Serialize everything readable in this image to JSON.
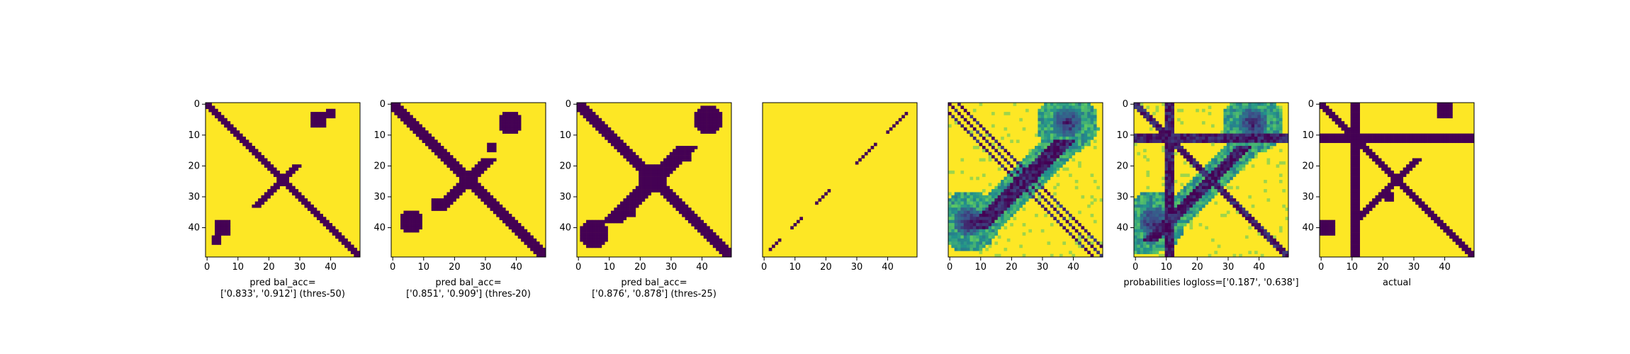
{
  "figure": {
    "panel_count": 7
  },
  "colors": {
    "low": "#440154",
    "high": "#fde725",
    "colormap": "viridis"
  },
  "chart_data": [
    {
      "type": "heatmap",
      "title": "",
      "xlabel": "pred bal_acc=\n['0.833', '0.912'] (thres-50)",
      "ylabel": "",
      "xlim": [
        0,
        49
      ],
      "ylim": [
        49,
        0
      ],
      "xticks": [
        0,
        10,
        20,
        30,
        40
      ],
      "yticks": [
        0,
        10,
        20,
        30,
        40
      ],
      "matrix_size": 50,
      "value_kind": "binary",
      "features": [
        {
          "kind": "anti_diagonal",
          "width": 2
        },
        {
          "kind": "diagonal_band",
          "from": 20,
          "to": 33,
          "width": 2
        },
        {
          "kind": "blob",
          "center": [
            36,
            5
          ],
          "size": 3
        },
        {
          "kind": "blob",
          "center": [
            40,
            3
          ],
          "size": 2
        },
        {
          "kind": "blob",
          "center": [
            5,
            40
          ],
          "size": 3
        },
        {
          "kind": "blob",
          "center": [
            3,
            44
          ],
          "size": 2
        }
      ]
    },
    {
      "type": "heatmap",
      "title": "",
      "xlabel": "pred bal_acc=\n['0.851', '0.909'] (thres-20)",
      "ylabel": "",
      "xlim": [
        0,
        49
      ],
      "ylim": [
        49,
        0
      ],
      "xticks": [
        0,
        10,
        20,
        30,
        40
      ],
      "yticks": [
        0,
        10,
        20,
        30,
        40
      ],
      "matrix_size": 50,
      "value_kind": "binary",
      "features": [
        {
          "kind": "anti_diagonal",
          "width": 3
        },
        {
          "kind": "diagonal_band",
          "from": 18,
          "to": 34,
          "width": 3
        },
        {
          "kind": "blob",
          "center": [
            38,
            6
          ],
          "size": 4
        },
        {
          "kind": "blob",
          "center": [
            6,
            38
          ],
          "size": 4
        },
        {
          "kind": "blob",
          "center": [
            32,
            14
          ],
          "size": 2
        },
        {
          "kind": "blob",
          "center": [
            14,
            32
          ],
          "size": 2
        }
      ]
    },
    {
      "type": "heatmap",
      "title": "",
      "xlabel": "pred bal_acc=\n['0.876', '0.878'] (thres-25)",
      "ylabel": "",
      "xlim": [
        0,
        49
      ],
      "ylim": [
        49,
        0
      ],
      "xticks": [
        0,
        10,
        20,
        30,
        40
      ],
      "yticks": [
        0,
        10,
        20,
        30,
        40
      ],
      "matrix_size": 50,
      "value_kind": "binary",
      "features": [
        {
          "kind": "anti_diagonal",
          "width": 3
        },
        {
          "kind": "diagonal_band",
          "from": 14,
          "to": 38,
          "width": 4
        },
        {
          "kind": "blob",
          "center": [
            42,
            5
          ],
          "size": 5
        },
        {
          "kind": "blob",
          "center": [
            5,
            42
          ],
          "size": 5
        },
        {
          "kind": "blob",
          "center": [
            24,
            24
          ],
          "size": 5
        },
        {
          "kind": "blob",
          "center": [
            34,
            16
          ],
          "size": 3
        },
        {
          "kind": "blob",
          "center": [
            16,
            34
          ],
          "size": 3
        }
      ]
    },
    {
      "type": "heatmap",
      "title": "",
      "xlabel": "",
      "ylabel": "",
      "xlim": [
        0,
        49
      ],
      "ylim": [
        49,
        0
      ],
      "xticks": [
        0,
        10,
        20,
        30,
        40
      ],
      "yticks": [],
      "matrix_size": 50,
      "value_kind": "binary",
      "features": [
        {
          "kind": "anti_diagonal_segment",
          "from": 3,
          "to": 9,
          "width": 1
        },
        {
          "kind": "anti_diagonal_segment",
          "from": 13,
          "to": 19,
          "width": 1
        },
        {
          "kind": "anti_diagonal_segment",
          "from": 28,
          "to": 32,
          "width": 1
        },
        {
          "kind": "anti_diagonal_segment",
          "from": 37,
          "to": 40,
          "width": 1
        },
        {
          "kind": "anti_diagonal_segment",
          "from": 44,
          "to": 47,
          "width": 1
        }
      ]
    },
    {
      "type": "heatmap",
      "title": "",
      "xlabel": "",
      "ylabel": "",
      "xlim": [
        0,
        49
      ],
      "ylim": [
        49,
        0
      ],
      "xticks": [
        0,
        10,
        20,
        30,
        40
      ],
      "yticks": [],
      "matrix_size": 50,
      "value_kind": "probability",
      "features": [
        {
          "kind": "anti_diagonal",
          "width": 1
        },
        {
          "kind": "anti_diagonal_offset",
          "offset": 3,
          "width": 1
        },
        {
          "kind": "anti_diagonal_offset",
          "offset": -3,
          "width": 1
        },
        {
          "kind": "diagonal_band",
          "from": 12,
          "to": 40,
          "width": 4
        },
        {
          "kind": "blob",
          "center": [
            38,
            6
          ],
          "size": 5
        },
        {
          "kind": "blob",
          "center": [
            6,
            38
          ],
          "size": 5
        }
      ]
    },
    {
      "type": "heatmap",
      "title": "",
      "xlabel": "probabilities logloss=['0.187', '0.638']",
      "ylabel": "",
      "xlim": [
        0,
        49
      ],
      "ylim": [
        49,
        0
      ],
      "xticks": [
        0,
        10,
        20,
        30,
        40
      ],
      "yticks": [
        0,
        10,
        20,
        30,
        40
      ],
      "matrix_size": 50,
      "value_kind": "probability",
      "features": [
        {
          "kind": "row_band",
          "from": 10,
          "to": 12
        },
        {
          "kind": "col_band",
          "from": 10,
          "to": 12
        },
        {
          "kind": "anti_diagonal",
          "width": 2
        },
        {
          "kind": "diagonal_band",
          "from": 14,
          "to": 44,
          "width": 3
        },
        {
          "kind": "blob",
          "center": [
            38,
            6
          ],
          "size": 5
        },
        {
          "kind": "blob",
          "center": [
            6,
            38
          ],
          "size": 5
        }
      ]
    },
    {
      "type": "heatmap",
      "title": "",
      "xlabel": "actual",
      "ylabel": "",
      "xlim": [
        0,
        49
      ],
      "ylim": [
        49,
        0
      ],
      "xticks": [
        0,
        10,
        20,
        30,
        40
      ],
      "yticks": [
        0,
        10,
        20,
        30,
        40
      ],
      "matrix_size": 50,
      "value_kind": "binary",
      "features": [
        {
          "kind": "row_band",
          "from": 10,
          "to": 12
        },
        {
          "kind": "col_band",
          "from": 10,
          "to": 12
        },
        {
          "kind": "anti_diagonal",
          "width": 2
        },
        {
          "kind": "diagonal_band",
          "from": 18,
          "to": 38,
          "width": 2
        },
        {
          "kind": "blob",
          "center": [
            40,
            2
          ],
          "size": 3
        },
        {
          "kind": "blob",
          "center": [
            2,
            40
          ],
          "size": 3
        },
        {
          "kind": "blob",
          "center": [
            22,
            30
          ],
          "size": 2
        }
      ]
    }
  ]
}
